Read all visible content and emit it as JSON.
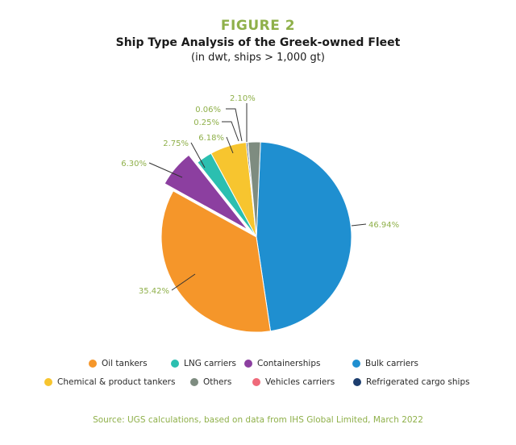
{
  "figure_label": "FIGURE 2",
  "source": "Source: UGS calculations, based on data from IHS Global Limited, March 2022",
  "chart_data": {
    "type": "pie",
    "title": "Ship Type Analysis of the Greek-owned Fleet",
    "subtitle": "(in dwt, ships > 1,000 gt)",
    "slices": [
      {
        "name": "Bulk carriers",
        "value": 46.94,
        "label": "46.94%",
        "color": "#1f8fd0",
        "exploded": false
      },
      {
        "name": "Oil tankers",
        "value": 35.42,
        "label": "35.42%",
        "color": "#f5962a",
        "exploded": false
      },
      {
        "name": "Containerships",
        "value": 6.3,
        "label": "6.30%",
        "color": "#8c3fa0",
        "exploded": true
      },
      {
        "name": "LNG carriers",
        "value": 2.75,
        "label": "2.75%",
        "color": "#2bbfb0",
        "exploded": false
      },
      {
        "name": "Chemical & product tankers",
        "value": 6.18,
        "label": "6.18%",
        "color": "#f7c52f",
        "exploded": false
      },
      {
        "name": "Refrigerated cargo ships",
        "value": 0.25,
        "label": "0.25%",
        "color": "#1d3e6e",
        "exploded": false
      },
      {
        "name": "Vehicles carriers",
        "value": 0.06,
        "label": "0.06%",
        "color": "#ef6a7a",
        "exploded": false
      },
      {
        "name": "Others",
        "value": 2.1,
        "label": "2.10%",
        "color": "#7e8c80",
        "exploded": false
      }
    ],
    "legend": [
      "Oil tankers",
      "LNG carriers",
      "Containerships",
      "Bulk carriers",
      "Chemical & product tankers",
      "Others",
      "Vehicles carriers",
      "Refrigerated cargo ships"
    ],
    "legend_placement": "bottom"
  }
}
